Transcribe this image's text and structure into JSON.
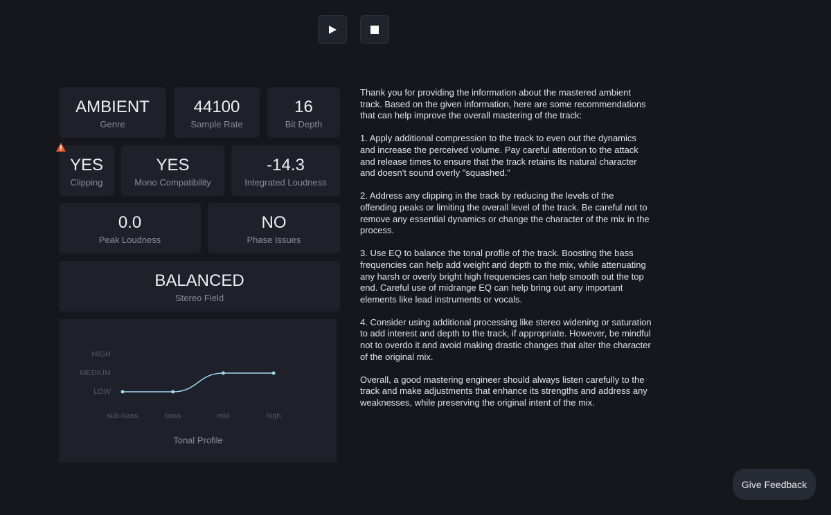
{
  "cards": [
    {
      "value": "AMBIENT",
      "label": "Genre"
    },
    {
      "value": "44100",
      "label": "Sample Rate"
    },
    {
      "value": "16",
      "label": "Bit Depth"
    },
    {
      "value": "YES",
      "label": "Clipping"
    },
    {
      "value": "YES",
      "label": "Mono Compatibility"
    },
    {
      "value": "-14.3",
      "label": "Integrated Loudness"
    },
    {
      "value": "0.0",
      "label": "Peak Loudness"
    },
    {
      "value": "NO",
      "label": "Phase Issues"
    },
    {
      "value": "BALANCED",
      "label": "Stereo Field"
    }
  ],
  "chart_data": {
    "type": "line",
    "title": "Tonal Profile",
    "categories": [
      "sub-bass",
      "bass",
      "mid",
      "high"
    ],
    "values": [
      0,
      0,
      1,
      1
    ],
    "color": "#9fd8f0",
    "ylim": [
      0,
      2
    ],
    "yticks": [
      {
        "value": 0,
        "label": "LOW"
      },
      {
        "value": 1,
        "label": "MEDIUM"
      },
      {
        "value": 2,
        "label": "HIGH"
      }
    ]
  },
  "recommendations": [
    "Thank you for providing the information about the mastered ambient track. Based on the given information, here are some recommendations that can help improve the overall mastering of the track:",
    "1. Apply additional compression to the track to even out the dynamics and increase the perceived volume. Pay careful attention to the attack and release times to ensure that the track retains its natural character and doesn't sound overly \"squashed.\"",
    "2. Address any clipping in the track by reducing the levels of the offending peaks or limiting the overall level of the track. Be careful not to remove any essential dynamics or change the character of the mix in the process.",
    "3. Use EQ to balance the tonal profile of the track. Boosting the bass frequencies can help add weight and depth to the mix, while attenuating any harsh or overly bright high frequencies can help smooth out the top end. Careful use of midrange EQ can help bring out any important elements like lead instruments or vocals.",
    "4. Consider using additional processing like stereo widening or saturation to add interest and depth to the track, if appropriate. However, be mindful not to overdo it and avoid making drastic changes that alter the character of the original mix.",
    "Overall, a good mastering engineer should always listen carefully to the track and make adjustments that enhance its strengths and address any weaknesses, while preserving the original intent of the mix."
  ],
  "feedback_button": "Give Feedback"
}
